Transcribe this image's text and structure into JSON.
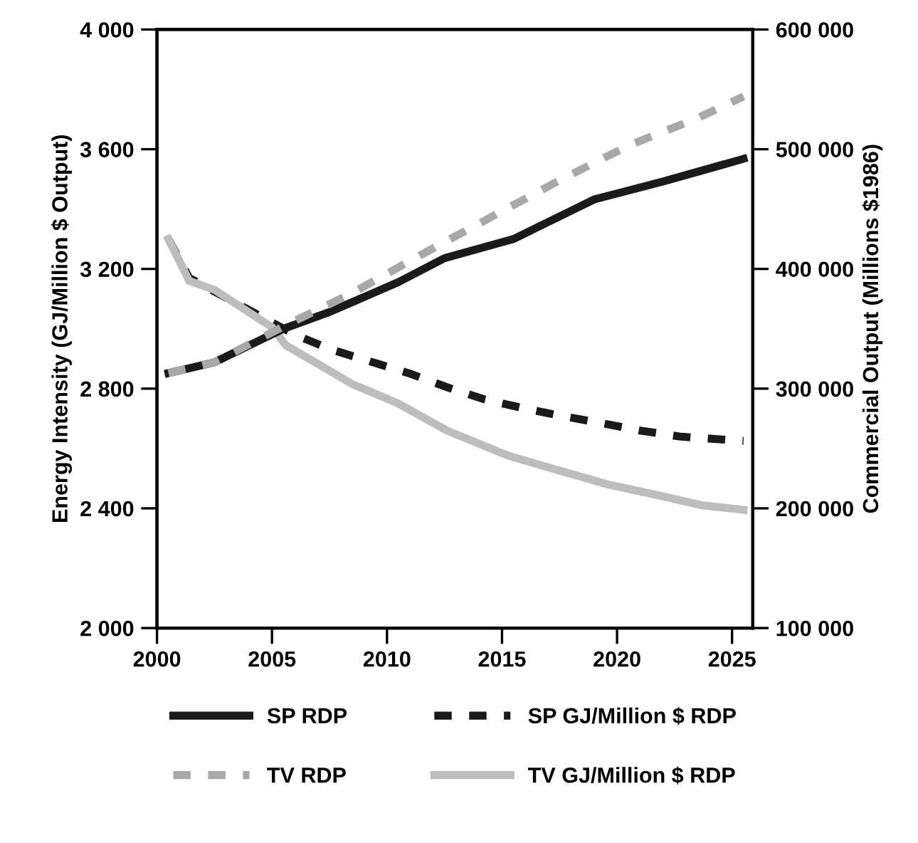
{
  "chart_data": {
    "type": "line",
    "ylabel": "Energy Intensity (GJ/Million $ Output)",
    "y2label": "Commercial Output (Millions $1986)",
    "xlim": [
      2000,
      2025.9
    ],
    "xticks": [
      2000,
      2005,
      2010,
      2015,
      2020,
      2025
    ],
    "ylim": [
      2000,
      4000
    ],
    "yticks": [
      {
        "value": 2000,
        "label": "2 000"
      },
      {
        "value": 2400,
        "label": "2 400"
      },
      {
        "value": 2800,
        "label": "2 800"
      },
      {
        "value": 3200,
        "label": "3 200"
      },
      {
        "value": 3600,
        "label": "3 600"
      },
      {
        "value": 4000,
        "label": "4 000"
      }
    ],
    "y2lim": [
      100000,
      600000
    ],
    "y2ticks": [
      {
        "value": 100000,
        "label": "100 000"
      },
      {
        "value": 200000,
        "label": "200 000"
      },
      {
        "value": 300000,
        "label": "300 000"
      },
      {
        "value": 400000,
        "label": "400 000"
      },
      {
        "value": 500000,
        "label": "500 000"
      },
      {
        "value": 600000,
        "label": "600 000"
      }
    ],
    "grid": false,
    "legend": "bottom",
    "marker": "none",
    "series": [
      {
        "name": "SP RDP",
        "color": "#1a1a1a",
        "line_style": "solid",
        "axis": "y2",
        "x": [
          2000.5,
          2002.5,
          2005.5,
          2007.5,
          2010.5,
          2012.5,
          2015.5,
          2019,
          2022,
          2025.5
        ],
        "values": [
          313000,
          322000,
          350000,
          364000,
          389000,
          409000,
          425000,
          458000,
          473000,
          492000
        ]
      },
      {
        "name": "SP GJ/Million $ RDP",
        "color": "#1a1a1a",
        "line_style": "dashed",
        "x": [
          2000.5,
          2001.4,
          2004.3,
          2006,
          2007.6,
          2009.3,
          2011,
          2012.6,
          2014.2,
          2015.9,
          2017.5,
          2019.3,
          2021,
          2022.7,
          2025.5
        ],
        "values": [
          3300,
          3170,
          3050,
          2980,
          2930,
          2890,
          2850,
          2805,
          2765,
          2735,
          2710,
          2685,
          2660,
          2640,
          2625
        ]
      },
      {
        "name": "TV RDP",
        "color": "#a8a8a8",
        "line_style": "dashed",
        "axis": "y2",
        "x": [
          2000.5,
          2002.5,
          2005.5,
          2008.5,
          2011.5,
          2014.5,
          2017.5,
          2020.5,
          2023.5,
          2025.5
        ],
        "values": [
          313000,
          322000,
          352000,
          380000,
          412000,
          443000,
          474000,
          503000,
          526000,
          544000
        ]
      },
      {
        "name": "TV GJ/Million $ RDP",
        "color": "#bdbdbd",
        "line_style": "solid",
        "x": [
          2000.5,
          2001.4,
          2002.5,
          2005,
          2005.6,
          2008.5,
          2010.5,
          2012.6,
          2015.3,
          2018,
          2019.6,
          2021.7,
          2023.7,
          2025.5
        ],
        "values": [
          3300,
          3160,
          3130,
          3005,
          2945,
          2815,
          2750,
          2660,
          2575,
          2515,
          2480,
          2445,
          2410,
          2395
        ]
      }
    ]
  }
}
